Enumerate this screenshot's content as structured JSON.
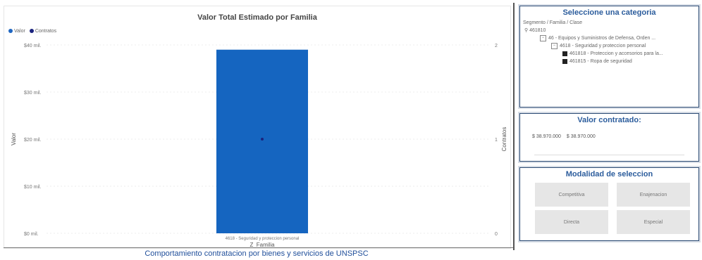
{
  "chart_title": "Valor Total Estimado por Familia",
  "footer_title": "Comportamiento contratacion por bienes y servicios de UNSPSC",
  "legend": [
    {
      "label": "Valor",
      "color": "#1f66c1"
    },
    {
      "label": "Contratos",
      "color": "#1a237e"
    }
  ],
  "chart_data": {
    "type": "bar",
    "categories": [
      "4618 - Seguridad y proteccion personal"
    ],
    "series": [
      {
        "name": "Valor",
        "values": [
          0.039
        ],
        "axis": "left",
        "color": "#1565c0"
      },
      {
        "name": "Contratos",
        "values": [
          1
        ],
        "axis": "right",
        "color": "#1a237e",
        "marker": "point"
      }
    ],
    "xlabel": "Z_Familia",
    "ylabel": "Valor",
    "y2label": "Contratos",
    "ylim": [
      0,
      0.04
    ],
    "y2lim": [
      0,
      2
    ],
    "yticks": [
      "$0 mil.",
      "$10 mil.",
      "$20 mil.",
      "$30 mil.",
      "$40 mil."
    ],
    "y2ticks": [
      "0",
      "1",
      "2"
    ],
    "grid": true
  },
  "category_filter": {
    "title": "Seleccione una categoria",
    "header": "Segmento / Familia / Clase",
    "items": [
      {
        "label": "461810",
        "level": 0,
        "control": "search"
      },
      {
        "label": "46 - Equipos y Suministros de Defensa, Orden ...",
        "level": 1,
        "control": "expand"
      },
      {
        "label": "4618 - Seguridad y proteccion personal",
        "level": 2,
        "control": "expand"
      },
      {
        "label": "461818 - Proteccion y accesorios para la...",
        "level": 3,
        "control": "checked"
      },
      {
        "label": "461815 - Ropa de seguridad",
        "level": 3,
        "control": "checked"
      }
    ]
  },
  "valor_contratado": {
    "title": "Valor contratado:",
    "min": "$ 38.970.000",
    "max": "$ 38.970.000"
  },
  "modalidad": {
    "title": "Modalidad de seleccion",
    "buttons": [
      "Competitiva",
      "Enajenacion",
      "Directa",
      "Especial"
    ]
  }
}
